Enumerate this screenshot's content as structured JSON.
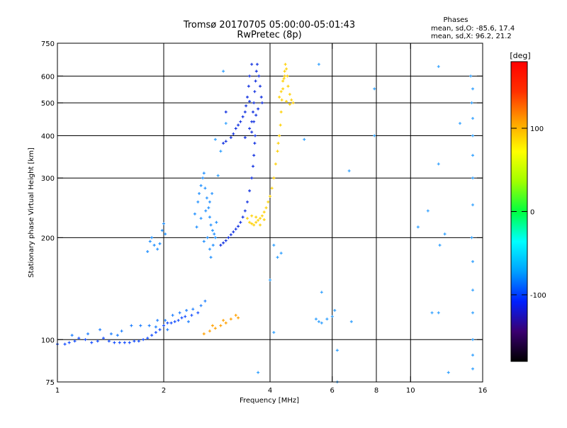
{
  "header": {
    "title": "Tromsø 20170705 05:00:00-05:01:43",
    "subtitle": "RwPretec (8p)",
    "stats_title": "Phases",
    "stats_o": "mean, sd,O: -85.6, 17.4",
    "stats_x": "mean, sd,X:  96.2, 21.2"
  },
  "chart_data": {
    "type": "scatter",
    "xlabel": "Frequency [MHz]",
    "ylabel": "Stationary phase Virtual Height [km]",
    "xscale": "log",
    "yscale": "log",
    "xlim": [
      1,
      16
    ],
    "ylim": [
      75,
      750
    ],
    "xticks": [
      1,
      2,
      4,
      6,
      8,
      10,
      16
    ],
    "yticks": [
      75,
      100,
      200,
      300,
      400,
      500,
      600,
      750
    ],
    "xgrid": [
      2,
      4,
      6,
      8,
      10
    ],
    "ygrid": [
      100,
      200,
      300,
      400,
      500,
      600
    ],
    "colorbar": {
      "label": "[deg]",
      "range": [
        -180,
        180
      ],
      "ticks": [
        100,
        0,
        -100
      ],
      "colors": [
        "#000000",
        "#3a0070",
        "#0020ff",
        "#00a0ff",
        "#00ffff",
        "#00ff40",
        "#a0ff00",
        "#ffff00",
        "#ffa000",
        "#ff3000",
        "#ff0000"
      ]
    },
    "series": [
      {
        "group": "o-mode-e-region",
        "points": [
          [
            1.0,
            97
          ],
          [
            1.05,
            97
          ],
          [
            1.08,
            98
          ],
          [
            1.12,
            99
          ],
          [
            1.15,
            101
          ],
          [
            1.2,
            100
          ],
          [
            1.25,
            98
          ],
          [
            1.3,
            99
          ],
          [
            1.35,
            101
          ],
          [
            1.4,
            99
          ],
          [
            1.45,
            98
          ],
          [
            1.5,
            98
          ],
          [
            1.55,
            98
          ],
          [
            1.6,
            98
          ],
          [
            1.65,
            99
          ],
          [
            1.7,
            99
          ],
          [
            1.75,
            100
          ],
          [
            1.8,
            101
          ],
          [
            1.85,
            103
          ],
          [
            1.9,
            105
          ],
          [
            1.95,
            107
          ],
          [
            2.0,
            110
          ],
          [
            2.05,
            112
          ],
          [
            2.1,
            112
          ],
          [
            2.15,
            113
          ],
          [
            2.2,
            114
          ],
          [
            2.25,
            116
          ],
          [
            2.3,
            117
          ],
          [
            2.4,
            118
          ],
          [
            2.5,
            120
          ]
        ],
        "color": "#1850ff"
      },
      {
        "group": "o-mode-scatter-e",
        "points": [
          [
            1.1,
            103
          ],
          [
            1.22,
            104
          ],
          [
            1.32,
            107
          ],
          [
            1.42,
            104
          ],
          [
            1.52,
            106
          ],
          [
            1.62,
            110
          ],
          [
            1.72,
            110
          ],
          [
            1.82,
            110
          ],
          [
            1.92,
            114
          ],
          [
            2.02,
            114
          ],
          [
            2.12,
            118
          ],
          [
            2.22,
            120
          ],
          [
            2.32,
            122
          ],
          [
            2.42,
            123
          ],
          [
            2.55,
            126
          ],
          [
            2.62,
            130
          ],
          [
            1.9,
            109
          ],
          [
            2.05,
            107
          ],
          [
            2.35,
            113
          ],
          [
            1.48,
            103
          ]
        ],
        "color": "#2080ff"
      },
      {
        "group": "o-mode-f1-scatter",
        "points": [
          [
            2.45,
            235
          ],
          [
            2.5,
            255
          ],
          [
            2.52,
            270
          ],
          [
            2.55,
            285
          ],
          [
            2.58,
            300
          ],
          [
            2.6,
            310
          ],
          [
            2.62,
            280
          ],
          [
            2.65,
            262
          ],
          [
            2.68,
            245
          ],
          [
            2.7,
            230
          ],
          [
            2.72,
            218
          ],
          [
            2.75,
            210
          ],
          [
            2.78,
            205
          ],
          [
            2.8,
            200
          ],
          [
            2.82,
            222
          ],
          [
            2.48,
            215
          ],
          [
            2.55,
            228
          ],
          [
            2.63,
            240
          ],
          [
            2.7,
            255
          ],
          [
            2.74,
            270
          ],
          [
            1.85,
            200
          ],
          [
            1.88,
            190
          ],
          [
            1.92,
            185
          ],
          [
            1.95,
            192
          ],
          [
            1.98,
            210
          ],
          [
            2.0,
            220
          ],
          [
            2.02,
            205
          ],
          [
            1.8,
            182
          ],
          [
            1.83,
            195
          ],
          [
            2.7,
            185
          ],
          [
            2.72,
            175
          ],
          [
            2.6,
            195
          ],
          [
            2.66,
            200
          ],
          [
            2.76,
            190
          ]
        ],
        "color": "#2090ff"
      },
      {
        "group": "o-mode-f-region",
        "points": [
          [
            2.9,
            190
          ],
          [
            2.95,
            193
          ],
          [
            3.0,
            196
          ],
          [
            3.05,
            200
          ],
          [
            3.1,
            204
          ],
          [
            3.15,
            208
          ],
          [
            3.2,
            212
          ],
          [
            3.25,
            216
          ],
          [
            3.3,
            222
          ],
          [
            3.35,
            230
          ],
          [
            3.4,
            240
          ],
          [
            3.45,
            255
          ],
          [
            3.5,
            275
          ],
          [
            3.55,
            300
          ],
          [
            3.58,
            325
          ],
          [
            3.6,
            350
          ],
          [
            3.62,
            380
          ],
          [
            3.63,
            400
          ],
          [
            3.55,
            410
          ],
          [
            3.5,
            420
          ],
          [
            3.55,
            440
          ],
          [
            3.58,
            470
          ],
          [
            3.6,
            500
          ],
          [
            3.62,
            540
          ],
          [
            3.64,
            580
          ],
          [
            3.66,
            620
          ],
          [
            3.68,
            650
          ],
          [
            3.55,
            650
          ],
          [
            3.5,
            600
          ],
          [
            3.48,
            560
          ],
          [
            3.45,
            520
          ],
          [
            3.42,
            490
          ],
          [
            3.4,
            470
          ],
          [
            3.35,
            455
          ],
          [
            3.3,
            440
          ],
          [
            3.25,
            430
          ],
          [
            3.2,
            420
          ],
          [
            3.15,
            405
          ],
          [
            3.1,
            395
          ],
          [
            3.0,
            385
          ],
          [
            2.95,
            380
          ],
          [
            3.72,
            600
          ],
          [
            3.75,
            560
          ],
          [
            3.78,
            520
          ],
          [
            3.8,
            500
          ],
          [
            3.7,
            480
          ],
          [
            3.65,
            460
          ],
          [
            3.6,
            440
          ],
          [
            3.0,
            470
          ],
          [
            3.5,
            505
          ],
          [
            3.4,
            395
          ]
        ],
        "color": "#1030e0"
      },
      {
        "group": "x-mode-e-region",
        "points": [
          [
            2.6,
            104
          ],
          [
            2.7,
            106
          ],
          [
            2.8,
            108
          ],
          [
            2.9,
            110
          ],
          [
            3.0,
            112
          ],
          [
            3.1,
            115
          ],
          [
            3.2,
            118
          ],
          [
            3.25,
            116
          ],
          [
            2.75,
            110
          ],
          [
            2.95,
            114
          ]
        ],
        "color": "#ffa000"
      },
      {
        "group": "x-mode-f-region",
        "points": [
          [
            3.45,
            228
          ],
          [
            3.5,
            222
          ],
          [
            3.55,
            220
          ],
          [
            3.6,
            218
          ],
          [
            3.65,
            222
          ],
          [
            3.7,
            225
          ],
          [
            3.75,
            228
          ],
          [
            3.8,
            232
          ],
          [
            3.85,
            238
          ],
          [
            3.9,
            245
          ],
          [
            3.95,
            255
          ],
          [
            4.0,
            265
          ],
          [
            4.05,
            280
          ],
          [
            4.1,
            300
          ],
          [
            4.15,
            330
          ],
          [
            4.2,
            360
          ],
          [
            4.22,
            380
          ],
          [
            4.25,
            400
          ],
          [
            4.28,
            430
          ],
          [
            4.3,
            470
          ],
          [
            4.32,
            510
          ],
          [
            4.35,
            550
          ],
          [
            4.38,
            590
          ],
          [
            4.4,
            620
          ],
          [
            4.42,
            650
          ],
          [
            4.45,
            630
          ],
          [
            4.48,
            600
          ],
          [
            4.5,
            560
          ],
          [
            4.55,
            530
          ],
          [
            4.6,
            510
          ],
          [
            4.65,
            500
          ],
          [
            4.3,
            540
          ],
          [
            4.35,
            580
          ],
          [
            4.4,
            600
          ],
          [
            4.25,
            520
          ],
          [
            3.55,
            232
          ],
          [
            3.65,
            230
          ],
          [
            3.75,
            218
          ],
          [
            3.85,
            226
          ],
          [
            4.45,
            505
          ],
          [
            4.55,
            495
          ]
        ],
        "color": "#ffd000"
      },
      {
        "group": "sparse-noise",
        "points": [
          [
            2.95,
            620
          ],
          [
            5.5,
            650
          ],
          [
            7.9,
            550
          ],
          [
            15.0,
            550
          ],
          [
            14.8,
            600
          ],
          [
            14.9,
            500
          ],
          [
            15.0,
            450
          ],
          [
            15.0,
            400
          ],
          [
            15.0,
            350
          ],
          [
            15.0,
            300
          ],
          [
            15.0,
            250
          ],
          [
            14.9,
            200
          ],
          [
            15.0,
            170
          ],
          [
            15.0,
            140
          ],
          [
            15.0,
            120
          ],
          [
            15.0,
            100
          ],
          [
            15.0,
            90
          ],
          [
            15.0,
            82
          ],
          [
            12.0,
            330
          ],
          [
            12.0,
            640
          ],
          [
            11.2,
            240
          ],
          [
            12.5,
            205
          ],
          [
            10.5,
            215
          ],
          [
            11.5,
            120
          ],
          [
            12.0,
            120
          ],
          [
            12.1,
            190
          ],
          [
            5.6,
            138
          ],
          [
            5.4,
            115
          ],
          [
            5.5,
            113
          ],
          [
            5.6,
            112
          ],
          [
            5.8,
            115
          ],
          [
            6.0,
            117
          ],
          [
            6.1,
            122
          ],
          [
            6.2,
            93
          ],
          [
            6.8,
            113
          ],
          [
            4.1,
            190
          ],
          [
            4.2,
            175
          ],
          [
            4.3,
            180
          ],
          [
            4.0,
            150
          ],
          [
            4.1,
            105
          ],
          [
            3.7,
            80
          ],
          [
            5.0,
            390
          ],
          [
            6.7,
            315
          ],
          [
            7.9,
            400
          ],
          [
            13.8,
            435
          ],
          [
            12.8,
            80
          ],
          [
            6.2,
            75
          ],
          [
            2.8,
            390
          ],
          [
            3.0,
            435
          ],
          [
            2.85,
            305
          ],
          [
            2.9,
            360
          ]
        ],
        "color": "#30a0ff"
      }
    ]
  }
}
